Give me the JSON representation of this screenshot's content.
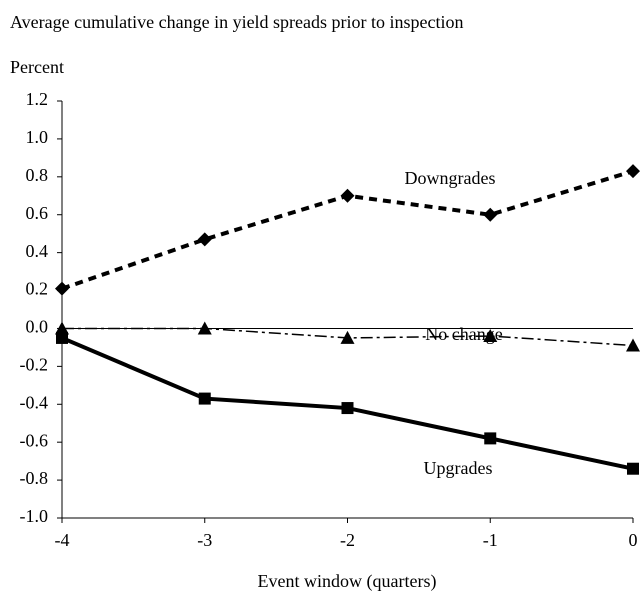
{
  "chart_data": {
    "type": "line",
    "title": "Average cumulative change in yield spreads prior to inspection",
    "y_label": "Percent",
    "x_label": "Event window (quarters)",
    "x": [
      -4,
      -3,
      -2,
      -1,
      0
    ],
    "series": [
      {
        "name": "Downgrades",
        "color": "#000000",
        "marker": "diamond",
        "line_style": "dashed",
        "values": [
          0.21,
          0.47,
          0.7,
          0.6,
          0.83
        ]
      },
      {
        "name": "No change",
        "color": "#000000",
        "marker": "triangle",
        "line_style": "dash-dot",
        "values": [
          0.0,
          0.0,
          -0.05,
          -0.04,
          -0.09
        ]
      },
      {
        "name": "Upgrades",
        "color": "#000000",
        "marker": "square",
        "line_style": "solid",
        "values": [
          -0.05,
          -0.37,
          -0.42,
          -0.58,
          -0.74
        ]
      }
    ],
    "xlim": [
      -4,
      0
    ],
    "xticks": [
      -4,
      -3,
      -2,
      -1,
      0
    ],
    "ylim": [
      -1,
      1.2
    ],
    "yticks": [
      {
        "value": -1,
        "label": "-1.0"
      },
      -0.8,
      -0.6,
      -0.4,
      -0.2,
      {
        "value": 0,
        "label": "0.0"
      },
      0.2,
      0.4,
      0.6,
      0.8,
      {
        "value": 1,
        "label": "1.0"
      },
      1.2
    ],
    "zero_line": true
  }
}
